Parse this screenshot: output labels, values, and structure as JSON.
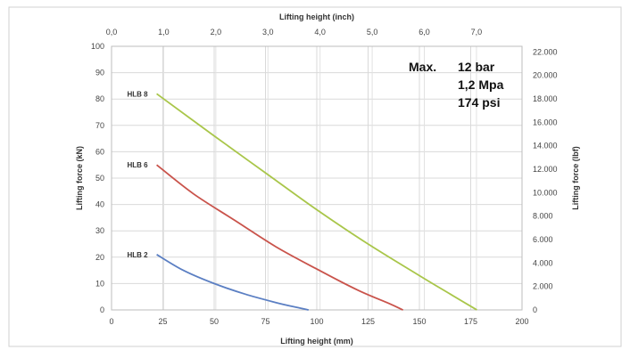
{
  "chart_data": {
    "type": "line",
    "xlabel": "Lifting height (mm)",
    "x2label": "Lifting height (inch)",
    "ylabel": "Lifting force (kN)",
    "y2label": "Lifting force (lbf)",
    "xlim": [
      0,
      200
    ],
    "ylim": [
      0,
      100
    ],
    "x2lim": [
      0,
      7.874
    ],
    "y2lim": [
      0,
      22480
    ],
    "x_ticks": [
      "0",
      "25",
      "50",
      "75",
      "100",
      "125",
      "150",
      "175",
      "200"
    ],
    "x_tick_values": [
      0,
      25,
      50,
      75,
      100,
      125,
      150,
      175,
      200
    ],
    "y_ticks": [
      "0",
      "10",
      "20",
      "30",
      "40",
      "50",
      "60",
      "70",
      "80",
      "90",
      "100"
    ],
    "y_tick_values": [
      0,
      10,
      20,
      30,
      40,
      50,
      60,
      70,
      80,
      90,
      100
    ],
    "x2_ticks": [
      "0,0",
      "1,0",
      "2,0",
      "3,0",
      "4,0",
      "5,0",
      "6,0",
      "7,0"
    ],
    "x2_tick_values": [
      0,
      1,
      2,
      3,
      4,
      5,
      6,
      7
    ],
    "y2_ticks": [
      "0",
      "2.000",
      "4.000",
      "6.000",
      "8.000",
      "10.000",
      "12.000",
      "14.000",
      "16.000",
      "18.000",
      "20.000",
      "22.000"
    ],
    "y2_tick_values": [
      0,
      2000,
      4000,
      6000,
      8000,
      10000,
      12000,
      14000,
      16000,
      18000,
      20000,
      22000
    ],
    "grid": true,
    "series": [
      {
        "name": "HLB 2",
        "color": "#5b7fc3",
        "x": [
          22,
          35,
          50,
          65,
          80,
          90,
          96
        ],
        "y": [
          21,
          15,
          10,
          6,
          2.8,
          1,
          0
        ]
      },
      {
        "name": "HLB 6",
        "color": "#c9534b",
        "x": [
          22,
          40,
          60,
          80,
          100,
          120,
          135,
          142
        ],
        "y": [
          55,
          44,
          34,
          24,
          15.5,
          7.5,
          2.5,
          0
        ]
      },
      {
        "name": "HLB 8",
        "color": "#a9c64a",
        "x": [
          22,
          50,
          75,
          100,
          125,
          150,
          165,
          178
        ],
        "y": [
          82,
          66,
          52,
          38,
          25,
          13,
          6,
          0
        ]
      }
    ],
    "annotation": {
      "label": "Max.",
      "lines": [
        "12 bar",
        "1,2 Mpa",
        "174 psi"
      ]
    }
  }
}
